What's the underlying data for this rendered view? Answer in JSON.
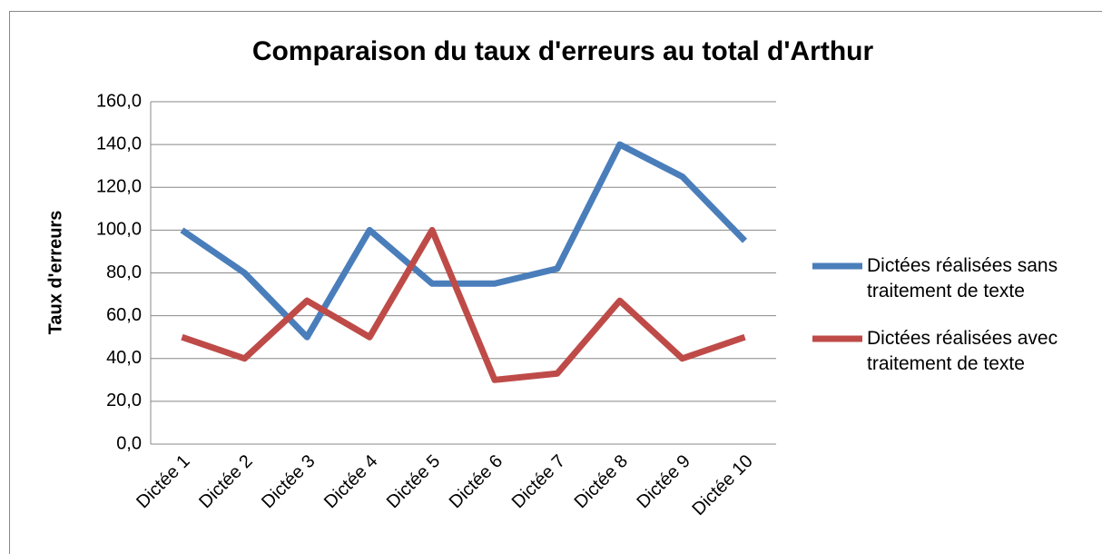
{
  "chart_data": {
    "type": "line",
    "title": "Comparaison du taux d'erreurs au total d'Arthur",
    "y_label": "Taux d'erreurs",
    "categories": [
      "Dictée 1",
      "Dictée 2",
      "Dictée 3",
      "Dictée 4",
      "Dictée 5",
      "Dictée 6",
      "Dictée 7",
      "Dictée 8",
      "Dictée 9",
      "Dictée 10"
    ],
    "series": [
      {
        "name": "Dictées réalisées sans traitement de texte",
        "color": "#4a7ebb",
        "values": [
          100,
          80,
          50,
          100,
          75,
          75,
          82,
          140,
          125,
          95
        ]
      },
      {
        "name": "Dictées réalisées avec traitement de texte",
        "color": "#be4b48",
        "values": [
          50,
          40,
          67,
          50,
          100,
          30,
          33,
          67,
          40,
          50
        ]
      }
    ],
    "ylim": [
      0,
      160
    ],
    "yticks": [
      {
        "value": 0,
        "label": "0,0"
      },
      {
        "value": 20,
        "label": "20,0"
      },
      {
        "value": 40,
        "label": "40,0"
      },
      {
        "value": 60,
        "label": "60,0"
      },
      {
        "value": 80,
        "label": "80,0"
      },
      {
        "value": 100,
        "label": "100,0"
      },
      {
        "value": 120,
        "label": "120,0"
      },
      {
        "value": 140,
        "label": "140,0"
      },
      {
        "value": 160,
        "label": "160,0"
      }
    ],
    "grid": true,
    "legend": "right"
  }
}
